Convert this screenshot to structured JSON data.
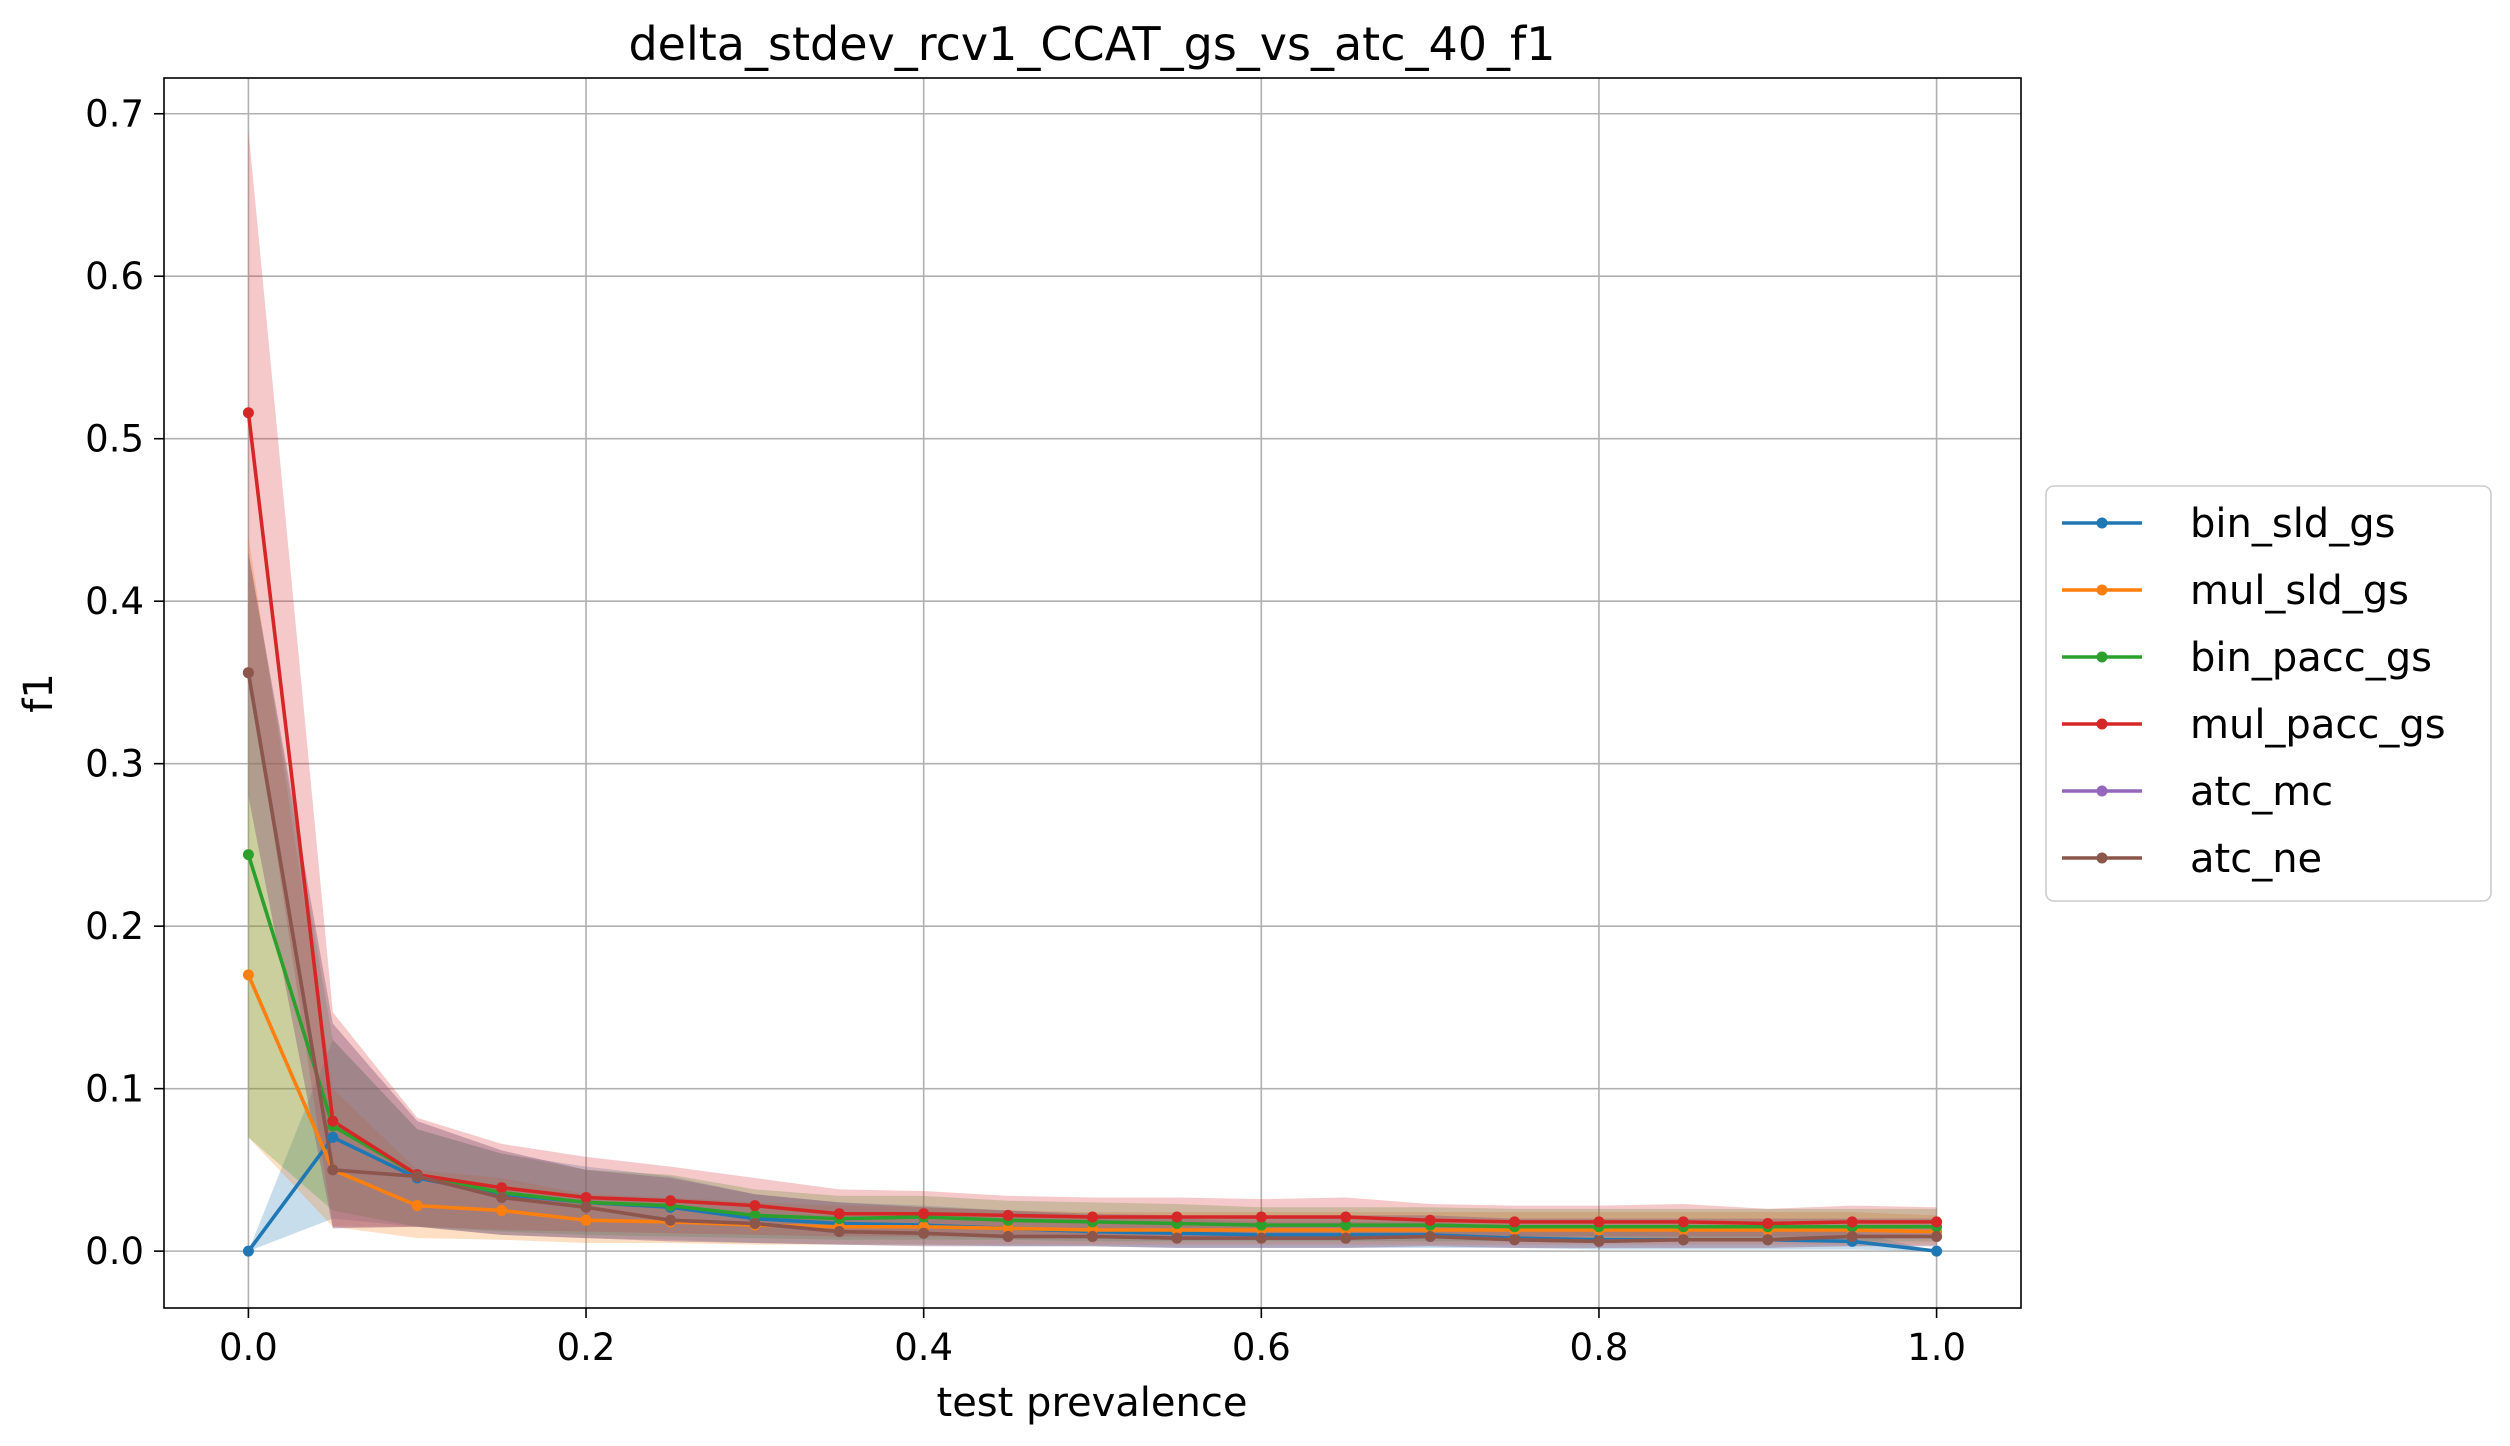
{
  "chart_data": {
    "type": "line",
    "title": "delta_stdev_rcv1_CCAT_gs_vs_atc_40_f1",
    "xlabel": "test prevalence",
    "ylabel": "f1",
    "xlim": [
      -0.05,
      1.05
    ],
    "ylim": [
      -0.035,
      0.722
    ],
    "xticks": [
      0.0,
      0.2,
      0.4,
      0.6,
      0.8,
      1.0
    ],
    "xtick_labels": [
      "0.0",
      "0.2",
      "0.4",
      "0.6",
      "0.8",
      "1.0"
    ],
    "yticks": [
      0.0,
      0.1,
      0.2,
      0.3,
      0.4,
      0.5,
      0.6,
      0.7
    ],
    "ytick_labels": [
      "0.0",
      "0.1",
      "0.2",
      "0.3",
      "0.4",
      "0.5",
      "0.6",
      "0.7"
    ],
    "grid": true,
    "legend_position": "right outside",
    "x": [
      0.0,
      0.05,
      0.1,
      0.15,
      0.2,
      0.25,
      0.3,
      0.35,
      0.4,
      0.45,
      0.5,
      0.55,
      0.6,
      0.65,
      0.7,
      0.75,
      0.8,
      0.85,
      0.9,
      0.95,
      1.0
    ],
    "series": [
      {
        "name": "bin_sld_gs",
        "color": "#1f77b4",
        "values": [
          0.0,
          0.07,
          0.045,
          0.035,
          0.03,
          0.027,
          0.02,
          0.017,
          0.016,
          0.014,
          0.012,
          0.011,
          0.01,
          0.01,
          0.01,
          0.008,
          0.007,
          0.007,
          0.007,
          0.006,
          0.0
        ],
        "band_low": [
          0.0,
          0.02,
          0.015,
          0.01,
          0.008,
          0.007,
          0.005,
          0.004,
          0.004,
          0.003,
          0.003,
          0.002,
          0.002,
          0.002,
          0.002,
          0.002,
          0.001,
          0.001,
          0.001,
          0.001,
          0.0
        ],
        "band_high": [
          0.0,
          0.13,
          0.075,
          0.06,
          0.052,
          0.046,
          0.035,
          0.03,
          0.028,
          0.025,
          0.022,
          0.02,
          0.018,
          0.018,
          0.018,
          0.015,
          0.013,
          0.013,
          0.013,
          0.012,
          0.0
        ]
      },
      {
        "name": "mul_sld_gs",
        "color": "#ff7f0e",
        "values": [
          0.17,
          0.05,
          0.028,
          0.025,
          0.019,
          0.018,
          0.016,
          0.015,
          0.015,
          0.014,
          0.013,
          0.013,
          0.013,
          0.013,
          0.013,
          0.013,
          0.013,
          0.013,
          0.013,
          0.013,
          0.012
        ],
        "band_low": [
          0.07,
          0.015,
          0.008,
          0.007,
          0.005,
          0.005,
          0.004,
          0.004,
          0.004,
          0.004,
          0.004,
          0.004,
          0.004,
          0.004,
          0.004,
          0.004,
          0.004,
          0.004,
          0.004,
          0.004,
          0.004
        ],
        "band_high": [
          0.44,
          0.1,
          0.05,
          0.045,
          0.035,
          0.033,
          0.03,
          0.028,
          0.027,
          0.025,
          0.024,
          0.024,
          0.024,
          0.024,
          0.024,
          0.024,
          0.024,
          0.024,
          0.024,
          0.024,
          0.022
        ]
      },
      {
        "name": "bin_pacc_gs",
        "color": "#2ca02c",
        "values": [
          0.244,
          0.077,
          0.047,
          0.036,
          0.03,
          0.028,
          0.022,
          0.02,
          0.021,
          0.019,
          0.018,
          0.017,
          0.016,
          0.016,
          0.016,
          0.015,
          0.015,
          0.015,
          0.015,
          0.015,
          0.015
        ],
        "band_low": [
          0.07,
          0.025,
          0.015,
          0.012,
          0.01,
          0.009,
          0.008,
          0.007,
          0.007,
          0.007,
          0.006,
          0.006,
          0.006,
          0.006,
          0.006,
          0.006,
          0.006,
          0.006,
          0.006,
          0.006,
          0.006
        ],
        "band_high": [
          0.43,
          0.13,
          0.075,
          0.06,
          0.05,
          0.047,
          0.038,
          0.034,
          0.034,
          0.031,
          0.03,
          0.029,
          0.027,
          0.027,
          0.027,
          0.026,
          0.026,
          0.026,
          0.026,
          0.026,
          0.026
        ]
      },
      {
        "name": "mul_pacc_gs",
        "color": "#d62728",
        "values": [
          0.516,
          0.08,
          0.047,
          0.039,
          0.033,
          0.031,
          0.028,
          0.023,
          0.023,
          0.022,
          0.021,
          0.021,
          0.021,
          0.021,
          0.019,
          0.018,
          0.018,
          0.018,
          0.017,
          0.018,
          0.018
        ],
        "band_low": [
          0.36,
          0.015,
          0.015,
          0.013,
          0.012,
          0.011,
          0.01,
          0.009,
          0.009,
          0.009,
          0.009,
          0.009,
          0.009,
          0.009,
          0.009,
          0.009,
          0.009,
          0.009,
          0.009,
          0.009,
          0.009
        ],
        "band_high": [
          0.69,
          0.147,
          0.082,
          0.066,
          0.058,
          0.052,
          0.045,
          0.038,
          0.037,
          0.034,
          0.033,
          0.033,
          0.032,
          0.033,
          0.029,
          0.028,
          0.028,
          0.029,
          0.026,
          0.028,
          0.027
        ]
      },
      {
        "name": "atc_mc",
        "color": "#9467bd",
        "values": [
          0.356,
          0.05,
          0.046,
          0.033,
          0.027,
          0.019,
          0.017,
          0.012,
          0.011,
          0.009,
          0.009,
          0.008,
          0.008,
          0.008,
          0.009,
          0.007,
          0.006,
          0.007,
          0.007,
          0.009,
          0.009
        ],
        "band_low": [
          0.28,
          0.014,
          0.015,
          0.01,
          0.008,
          0.006,
          0.005,
          0.004,
          0.003,
          0.003,
          0.003,
          0.002,
          0.002,
          0.002,
          0.003,
          0.002,
          0.002,
          0.002,
          0.002,
          0.003,
          0.003
        ],
        "band_high": [
          0.43,
          0.14,
          0.08,
          0.062,
          0.05,
          0.045,
          0.035,
          0.03,
          0.027,
          0.025,
          0.023,
          0.022,
          0.022,
          0.022,
          0.022,
          0.02,
          0.02,
          0.02,
          0.02,
          0.02,
          0.02
        ]
      },
      {
        "name": "atc_ne",
        "color": "#8c564b",
        "values": [
          0.356,
          0.05,
          0.046,
          0.033,
          0.027,
          0.019,
          0.017,
          0.012,
          0.011,
          0.009,
          0.009,
          0.008,
          0.008,
          0.008,
          0.009,
          0.007,
          0.006,
          0.007,
          0.007,
          0.009,
          0.009
        ],
        "band_low": [
          0.28,
          0.014,
          0.015,
          0.01,
          0.008,
          0.006,
          0.005,
          0.004,
          0.003,
          0.003,
          0.003,
          0.002,
          0.002,
          0.002,
          0.003,
          0.002,
          0.002,
          0.002,
          0.002,
          0.003,
          0.003
        ],
        "band_high": [
          0.43,
          0.14,
          0.08,
          0.062,
          0.05,
          0.045,
          0.035,
          0.03,
          0.027,
          0.025,
          0.023,
          0.022,
          0.022,
          0.022,
          0.022,
          0.02,
          0.02,
          0.02,
          0.02,
          0.02,
          0.02
        ]
      }
    ]
  }
}
